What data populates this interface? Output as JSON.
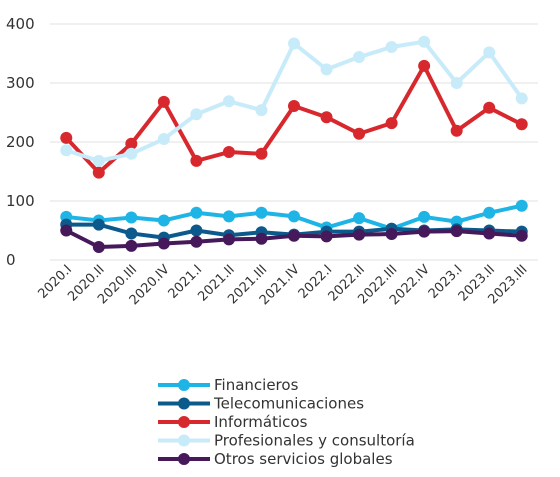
{
  "chart_data": {
    "type": "line",
    "categories": [
      "2020.I",
      "2020.II",
      "2020.III",
      "2020.IV",
      "2021.I",
      "2021.II",
      "2021.III",
      "2021.IV",
      "2022.I",
      "2022.II",
      "2022.III",
      "2022.IV",
      "2023.I",
      "2023.II",
      "2023.III"
    ],
    "series": [
      {
        "name": "Financieros",
        "color": "#1eb4e6",
        "values": [
          73,
          67,
          72,
          67,
          80,
          74,
          80,
          74,
          55,
          71,
          53,
          73,
          65,
          80,
          92
        ]
      },
      {
        "name": "Telecomunicaciones",
        "color": "#0c5a8c",
        "values": [
          60,
          60,
          45,
          38,
          50,
          42,
          47,
          43,
          48,
          48,
          53,
          50,
          52,
          50,
          48
        ]
      },
      {
        "name": "Informáticos",
        "color": "#d7282d",
        "values": [
          207,
          148,
          197,
          268,
          168,
          183,
          180,
          261,
          242,
          214,
          232,
          329,
          219,
          258,
          230
        ]
      },
      {
        "name": "Profesionales y consultoría",
        "color": "#c8ebfa",
        "values": [
          186,
          168,
          180,
          205,
          247,
          269,
          254,
          367,
          323,
          344,
          361,
          370,
          300,
          352,
          274
        ]
      },
      {
        "name": "Otros servicios globales",
        "color": "#46195a",
        "values": [
          50,
          22,
          24,
          28,
          31,
          35,
          36,
          41,
          40,
          43,
          44,
          48,
          49,
          45,
          41
        ]
      }
    ],
    "ylim": [
      0,
      400
    ],
    "yticks": [
      0,
      100,
      200,
      300,
      400
    ],
    "grid": true
  }
}
